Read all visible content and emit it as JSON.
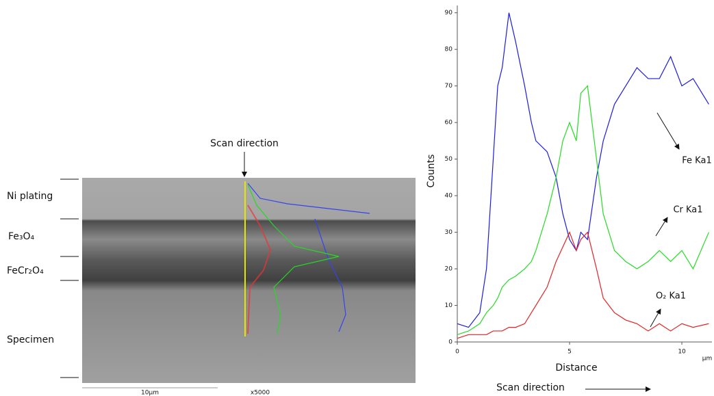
{
  "sem_image": {
    "scan_label": "Scan direction",
    "layers": [
      "Ni plating",
      "Fe₃O₄",
      "FeCr₂O₄",
      "Specimen"
    ],
    "scale_bar": "10µm",
    "magnification": "x5000"
  },
  "chart_data": {
    "type": "line",
    "x_label": "Distance",
    "y_label": "Counts",
    "x_unit": "µm",
    "direction_label": "Scan direction",
    "x": [
      0,
      0.5,
      1,
      1.3,
      1.6,
      1.8,
      2,
      2.3,
      2.6,
      3,
      3.3,
      3.5,
      4,
      4.4,
      4.7,
      5,
      5.3,
      5.5,
      5.8,
      6.2,
      6.5,
      7,
      7.5,
      8,
      8.5,
      9,
      9.5,
      10,
      10.5,
      11.2
    ],
    "series": [
      {
        "name": "Fe Ka1",
        "color": "#1a1ae6",
        "values": [
          5,
          4,
          8,
          20,
          50,
          70,
          75,
          90,
          82,
          70,
          60,
          55,
          52,
          45,
          35,
          28,
          25,
          30,
          28,
          45,
          55,
          65,
          70,
          75,
          72,
          72,
          78,
          70,
          72,
          65
        ]
      },
      {
        "name": "Cr Ka1",
        "color": "#22dd22",
        "values": [
          2,
          3,
          5,
          8,
          10,
          12,
          15,
          17,
          18,
          20,
          22,
          25,
          35,
          45,
          55,
          60,
          55,
          68,
          70,
          50,
          35,
          25,
          22,
          20,
          22,
          25,
          22,
          25,
          20,
          30
        ]
      },
      {
        "name": "O₂ Ka1",
        "color": "#e62020",
        "values": [
          1,
          2,
          2,
          2,
          3,
          3,
          3,
          4,
          4,
          5,
          8,
          10,
          15,
          22,
          26,
          30,
          25,
          28,
          30,
          20,
          12,
          8,
          6,
          5,
          3,
          5,
          3,
          5,
          4,
          5
        ]
      }
    ],
    "xlim": [
      0,
      11.34
    ],
    "xticks": [
      0,
      5,
      10
    ],
    "ylim": [
      0,
      92
    ],
    "yticks": [
      0,
      10,
      20,
      30,
      40,
      50,
      60,
      70,
      80,
      90
    ],
    "grid": false
  }
}
